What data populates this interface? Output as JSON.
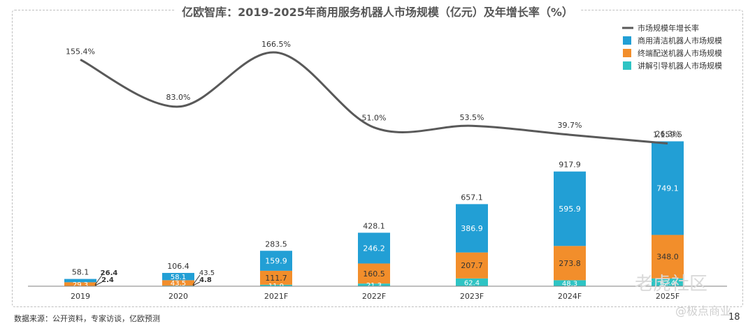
{
  "title": "亿欧智库：2019-2025年商用服务机器人市场规模（亿元）及年增长率（%）",
  "source": "数据来源：公开资料，专家访谈，亿欧预测",
  "page_number": "18",
  "watermark": "老虎社区",
  "watermark2": "@极点商业",
  "colors": {
    "growth_line": "#595959",
    "cleaning": "#229fd5",
    "delivery": "#f28e2b",
    "guide": "#2ec4c4"
  },
  "chart_data": {
    "type": "bar",
    "stacked": true,
    "categories": [
      "2019",
      "2020",
      "2021F",
      "2022F",
      "2023F",
      "2024F",
      "2025F"
    ],
    "series": [
      {
        "name": "讲解引导机器人市场规模",
        "values": [
          2.4,
          4.8,
          11.9,
          21.3,
          62.4,
          48.3,
          62.4
        ],
        "value_labels": [
          "2.4",
          "4.8",
          "11.9",
          "21.3",
          "62.4",
          "48.3",
          "62.4"
        ]
      },
      {
        "name": "终端配送机器人市场规模",
        "values": [
          29.3,
          43.5,
          111.7,
          160.5,
          207.7,
          273.8,
          348.0
        ],
        "value_labels": [
          "29.3",
          "43.5",
          "111.7",
          "160.5",
          "207.7",
          "273.8",
          "348.0"
        ]
      },
      {
        "name": "商用清洁机器人市场规模",
        "values": [
          26.4,
          58.1,
          159.9,
          246.2,
          386.9,
          595.9,
          749.1
        ],
        "value_labels": [
          "26.4",
          "58.1",
          "159.9",
          "246.2",
          "386.9",
          "595.9",
          "749.1"
        ]
      }
    ],
    "totals": [
      58.1,
      106.4,
      283.5,
      428.1,
      657.1,
      917.9,
      1159.5
    ],
    "total_labels": [
      "58.1",
      "106.4",
      "283.5",
      "428.1",
      "657.1",
      "917.9",
      "1,159.5"
    ],
    "line": {
      "name": "市场规模年增长率",
      "values": [
        155.4,
        83.0,
        166.5,
        51.0,
        53.5,
        39.7,
        26.3
      ],
      "labels": [
        "155.4%",
        "83.0%",
        "166.5%",
        "51.0%",
        "53.5%",
        "39.7%",
        "26.3%"
      ]
    },
    "legend_order": [
      "市场规模年增长率",
      "商用清洁机器人市场规模",
      "终端配送机器人市场规模",
      "讲解引导机器人市场规模"
    ],
    "legend_position": "top-right",
    "grid": false
  }
}
